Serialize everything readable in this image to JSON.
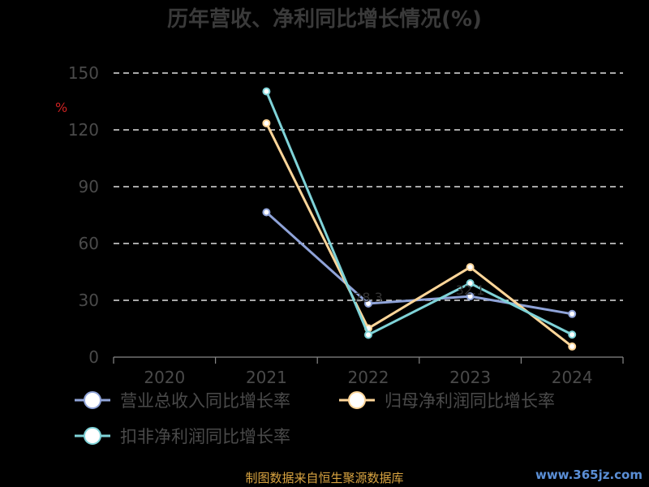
{
  "chart_data": {
    "type": "line",
    "title": "历年营收、净利同比增长情况(%)",
    "ylabel": "%",
    "categories": [
      "2020",
      "2021",
      "2022",
      "2023",
      "2024"
    ],
    "ylim": [
      0,
      150
    ],
    "yticks": [
      0,
      30,
      60,
      90,
      120,
      150
    ],
    "grid": true,
    "legend_position": "bottom-left",
    "series": [
      {
        "name": "营业总收入同比增长率",
        "color": "#8fa3d8",
        "values": [
          null,
          76.5,
          28.3,
          32.1,
          22.8
        ]
      },
      {
        "name": "归母净利润同比增长率",
        "color": "#ffd699",
        "values": [
          null,
          123.5,
          15.2,
          47.5,
          5.6
        ]
      },
      {
        "name": "扣非净利润同比增长率",
        "color": "#7fd3d8",
        "values": [
          null,
          140.3,
          11.8,
          39.0,
          11.9
        ]
      }
    ],
    "data_labels": [
      "28.3",
      "32.1"
    ]
  },
  "footer": {
    "source": "制图数据来自恒生聚源数据库",
    "watermark": "www.365jz.com"
  }
}
